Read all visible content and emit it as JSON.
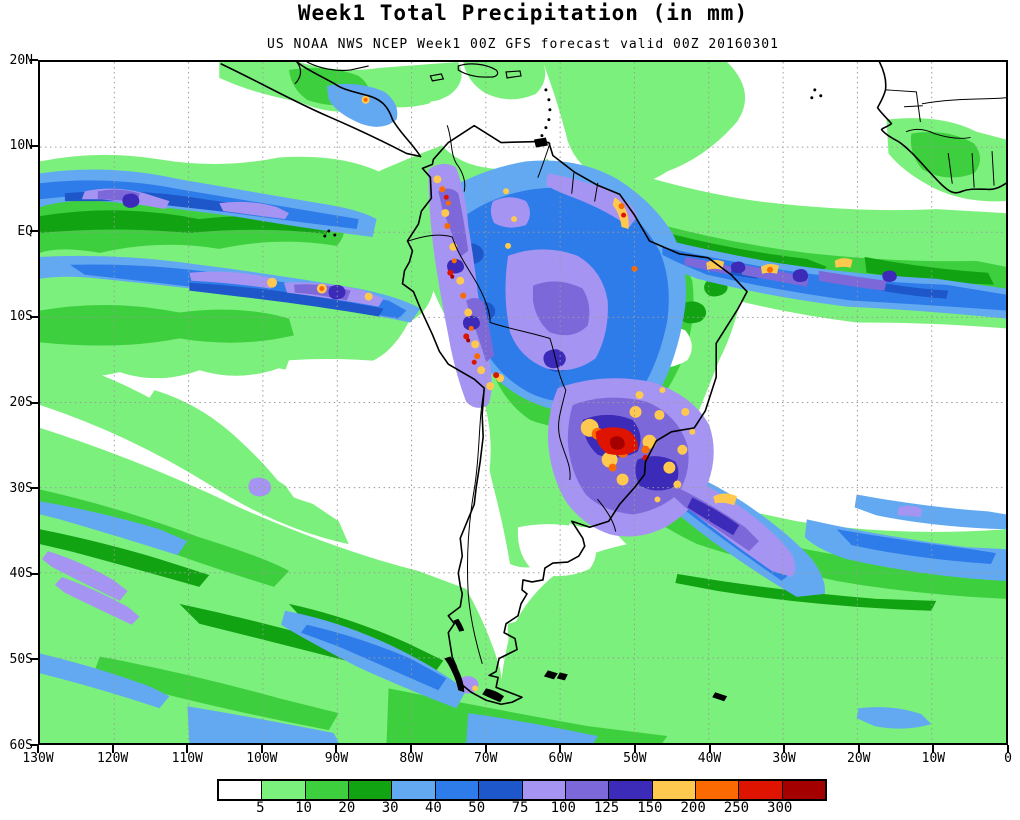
{
  "title": "Week1 Total Precipitation (in mm)",
  "subtitle": "US NOAA NWS NCEP Week1 00Z GFS forecast valid 00Z 20160301",
  "axes": {
    "lat_labels": [
      "20N",
      "10N",
      "EQ",
      "10S",
      "20S",
      "30S",
      "40S",
      "50S",
      "60S"
    ],
    "lon_labels": [
      "130W",
      "120W",
      "110W",
      "100W",
      "90W",
      "80W",
      "70W",
      "60W",
      "50W",
      "40W",
      "30W",
      "20W",
      "10W",
      "0"
    ]
  },
  "legend": {
    "labels": [
      "5",
      "10",
      "20",
      "30",
      "40",
      "50",
      "75",
      "100",
      "125",
      "150",
      "200",
      "250",
      "300"
    ],
    "colors": [
      "#ffffff",
      "#7cf07c",
      "#3ecf3e",
      "#12a312",
      "#63a9f1",
      "#2e7ce9",
      "#1d57c9",
      "#a694f2",
      "#7d68da",
      "#3c2ab8",
      "#ffc84f",
      "#fb6a00",
      "#de1400",
      "#a40000"
    ]
  },
  "map": {
    "region": "South America GFS precipitation forecast",
    "grid_color": "#9a9a9a",
    "coast_color": "#000000",
    "background": "#ffffff"
  }
}
